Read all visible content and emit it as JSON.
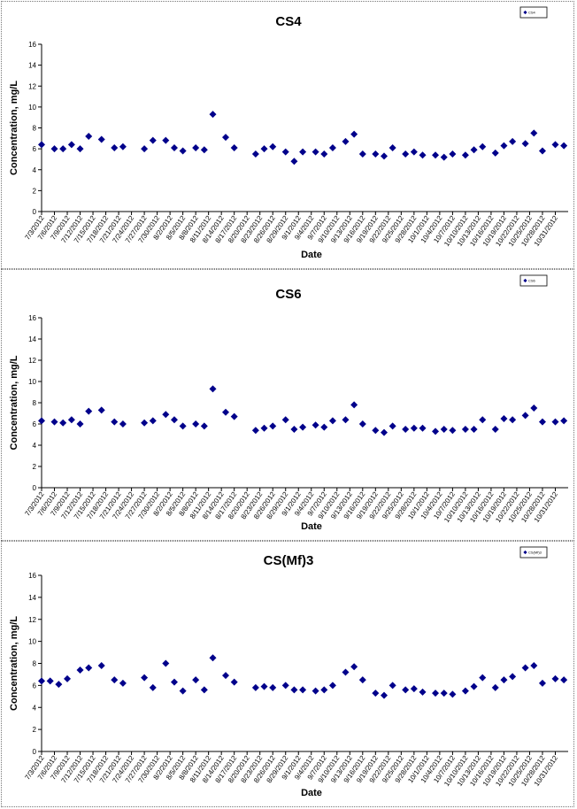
{
  "chart_data": [
    {
      "type": "scatter",
      "title": "CS4",
      "xlabel": "Date",
      "ylabel": "Concentration, mg/L",
      "ylim": [
        0,
        16
      ],
      "yticks": [
        0,
        2,
        4,
        6,
        8,
        10,
        12,
        14,
        16
      ],
      "grid": false,
      "legend_position": "top-right",
      "marker_color": "#00008b",
      "x_tick_labels": [
        "7/3/2012",
        "7/6/2012",
        "7/9/2012",
        "7/12/2012",
        "7/15/2012",
        "7/18/2012",
        "7/21/2012",
        "7/24/2012",
        "7/27/2012",
        "7/30/2012",
        "8/2/2012",
        "8/5/2012",
        "8/8/2012",
        "8/11/2012",
        "8/14/2012",
        "8/17/2012",
        "8/20/2012",
        "8/23/2012",
        "8/26/2012",
        "8/29/2012",
        "9/1/2012",
        "9/4/2012",
        "9/7/2012",
        "9/10/2012",
        "9/13/2012",
        "9/16/2012",
        "9/19/2012",
        "9/22/2012",
        "9/25/2012",
        "9/28/2012",
        "10/1/2012",
        "10/4/2012",
        "10/7/2012",
        "10/10/2012",
        "10/13/2012",
        "10/16/2012",
        "10/19/2012",
        "10/22/2012",
        "10/25/2012",
        "10/28/2012",
        "10/31/2012"
      ],
      "series": [
        {
          "name": "CS4",
          "x": [
            "7/3/2012",
            "7/6/2012",
            "7/8/2012",
            "7/10/2012",
            "7/12/2012",
            "7/14/2012",
            "7/17/2012",
            "7/20/2012",
            "7/22/2012",
            "7/27/2012",
            "7/29/2012",
            "8/1/2012",
            "8/3/2012",
            "8/5/2012",
            "8/8/2012",
            "8/10/2012",
            "8/12/2012",
            "8/15/2012",
            "8/17/2012",
            "8/22/2012",
            "8/24/2012",
            "8/26/2012",
            "8/29/2012",
            "8/31/2012",
            "9/2/2012",
            "9/5/2012",
            "9/7/2012",
            "9/9/2012",
            "9/12/2012",
            "9/14/2012",
            "9/16/2012",
            "9/19/2012",
            "9/21/2012",
            "9/23/2012",
            "9/26/2012",
            "9/28/2012",
            "9/30/2012",
            "10/3/2012",
            "10/5/2012",
            "10/7/2012",
            "10/10/2012",
            "10/12/2012",
            "10/14/2012",
            "10/17/2012",
            "10/19/2012",
            "10/21/2012",
            "10/24/2012",
            "10/26/2012",
            "10/28/2012",
            "10/31/2012",
            "11/2/2012"
          ],
          "y": [
            6.4,
            6.0,
            6.0,
            6.4,
            6.0,
            7.2,
            6.9,
            6.1,
            6.2,
            6.0,
            6.8,
            6.8,
            6.1,
            5.8,
            6.1,
            5.9,
            9.3,
            7.1,
            6.1,
            5.5,
            6.0,
            6.2,
            5.7,
            4.8,
            5.7,
            5.7,
            5.5,
            6.1,
            6.7,
            7.4,
            5.5,
            5.5,
            5.3,
            6.1,
            5.5,
            5.7,
            5.4,
            5.4,
            5.2,
            5.5,
            5.4,
            5.9,
            6.2,
            5.6,
            6.3,
            6.7,
            6.5,
            7.5,
            5.8,
            6.4,
            6.3
          ]
        }
      ]
    },
    {
      "type": "scatter",
      "title": "CS6",
      "xlabel": "Date",
      "ylabel": "Concentration, mg/L",
      "ylim": [
        0,
        16
      ],
      "yticks": [
        0,
        2,
        4,
        6,
        8,
        10,
        12,
        14,
        16
      ],
      "grid": false,
      "legend_position": "top-right",
      "marker_color": "#00008b",
      "x_tick_labels": [
        "7/3/2012",
        "7/6/2012",
        "7/9/2012",
        "7/12/2012",
        "7/15/2012",
        "7/18/2012",
        "7/21/2012",
        "7/24/2012",
        "7/27/2012",
        "7/30/2012",
        "8/2/2012",
        "8/5/2012",
        "8/8/2012",
        "8/11/2012",
        "8/14/2012",
        "8/17/2012",
        "8/20/2012",
        "8/23/2012",
        "8/26/2012",
        "8/29/2012",
        "9/1/2012",
        "9/4/2012",
        "9/7/2012",
        "9/10/2012",
        "9/13/2012",
        "9/16/2012",
        "9/19/2012",
        "9/22/2012",
        "9/25/2012",
        "9/28/2012",
        "10/1/2012",
        "10/4/2012",
        "10/7/2012",
        "10/10/2012",
        "10/13/2012",
        "10/16/2012",
        "10/19/2012",
        "10/22/2012",
        "10/25/2012",
        "10/28/2012",
        "10/31/2012"
      ],
      "series": [
        {
          "name": "CS6",
          "x": [
            "7/3/2012",
            "7/6/2012",
            "7/8/2012",
            "7/10/2012",
            "7/12/2012",
            "7/14/2012",
            "7/17/2012",
            "7/20/2012",
            "7/22/2012",
            "7/27/2012",
            "7/29/2012",
            "8/1/2012",
            "8/3/2012",
            "8/5/2012",
            "8/8/2012",
            "8/10/2012",
            "8/12/2012",
            "8/15/2012",
            "8/17/2012",
            "8/22/2012",
            "8/24/2012",
            "8/26/2012",
            "8/29/2012",
            "8/31/2012",
            "9/2/2012",
            "9/5/2012",
            "9/7/2012",
            "9/9/2012",
            "9/12/2012",
            "9/14/2012",
            "9/16/2012",
            "9/19/2012",
            "9/21/2012",
            "9/23/2012",
            "9/26/2012",
            "9/28/2012",
            "9/30/2012",
            "10/3/2012",
            "10/5/2012",
            "10/7/2012",
            "10/10/2012",
            "10/12/2012",
            "10/14/2012",
            "10/17/2012",
            "10/19/2012",
            "10/21/2012",
            "10/24/2012",
            "10/26/2012",
            "10/28/2012",
            "10/31/2012",
            "11/2/2012"
          ],
          "y": [
            6.3,
            6.2,
            6.1,
            6.4,
            6.0,
            7.2,
            7.3,
            6.2,
            6.0,
            6.1,
            6.3,
            6.9,
            6.4,
            5.8,
            6.0,
            5.8,
            9.3,
            7.1,
            6.7,
            5.4,
            5.6,
            5.8,
            6.4,
            5.5,
            5.7,
            5.9,
            5.7,
            6.3,
            6.4,
            7.8,
            6.0,
            5.4,
            5.2,
            5.8,
            5.5,
            5.6,
            5.6,
            5.3,
            5.5,
            5.4,
            5.5,
            5.5,
            6.4,
            5.5,
            6.5,
            6.4,
            6.8,
            7.5,
            6.2,
            6.2,
            6.3
          ]
        }
      ]
    },
    {
      "type": "scatter",
      "title": "CS(Mf)3",
      "xlabel": "Date",
      "ylabel": "Concentration, mg/L",
      "ylim": [
        0,
        16
      ],
      "yticks": [
        0,
        2,
        4,
        6,
        8,
        10,
        12,
        14,
        16
      ],
      "grid": false,
      "legend_position": "top-right",
      "marker_color": "#00008b",
      "x_tick_labels": [
        "7/3/2012",
        "7/6/2012",
        "7/9/2012",
        "7/12/2012",
        "7/15/2012",
        "7/18/2012",
        "7/21/2012",
        "7/24/2012",
        "7/27/2012",
        "7/30/2012",
        "8/2/2012",
        "8/5/2012",
        "8/8/2012",
        "8/11/2012",
        "8/14/2012",
        "8/17/2012",
        "8/20/2012",
        "8/23/2012",
        "8/26/2012",
        "8/29/2012",
        "9/1/2012",
        "9/4/2012",
        "9/7/2012",
        "9/10/2012",
        "9/13/2012",
        "9/16/2012",
        "9/19/2012",
        "9/22/2012",
        "9/25/2012",
        "9/28/2012",
        "10/1/2012",
        "10/4/2012",
        "10/7/2012",
        "10/10/2012",
        "10/13/2012",
        "10/16/2012",
        "10/19/2012",
        "10/22/2012",
        "10/25/2012",
        "10/28/2012",
        "10/31/2012"
      ],
      "series": [
        {
          "name": "CS(Mf)3",
          "x": [
            "7/3/2012",
            "7/5/2012",
            "7/7/2012",
            "7/9/2012",
            "7/12/2012",
            "7/14/2012",
            "7/17/2012",
            "7/20/2012",
            "7/22/2012",
            "7/27/2012",
            "7/29/2012",
            "8/1/2012",
            "8/3/2012",
            "8/5/2012",
            "8/8/2012",
            "8/10/2012",
            "8/12/2012",
            "8/15/2012",
            "8/17/2012",
            "8/22/2012",
            "8/24/2012",
            "8/26/2012",
            "8/29/2012",
            "8/31/2012",
            "9/2/2012",
            "9/5/2012",
            "9/7/2012",
            "9/9/2012",
            "9/12/2012",
            "9/14/2012",
            "9/16/2012",
            "9/19/2012",
            "9/21/2012",
            "9/23/2012",
            "9/26/2012",
            "9/28/2012",
            "9/30/2012",
            "10/3/2012",
            "10/5/2012",
            "10/7/2012",
            "10/10/2012",
            "10/12/2012",
            "10/14/2012",
            "10/17/2012",
            "10/19/2012",
            "10/21/2012",
            "10/24/2012",
            "10/26/2012",
            "10/28/2012",
            "10/31/2012",
            "11/2/2012"
          ],
          "y": [
            6.4,
            6.4,
            6.1,
            6.6,
            7.4,
            7.6,
            7.8,
            6.5,
            6.2,
            6.7,
            5.8,
            8.0,
            6.3,
            5.5,
            6.5,
            5.6,
            8.5,
            6.9,
            6.3,
            5.8,
            5.9,
            5.8,
            6.0,
            5.6,
            5.6,
            5.5,
            5.6,
            6.0,
            7.2,
            7.7,
            6.5,
            5.3,
            5.1,
            6.0,
            5.6,
            5.7,
            5.4,
            5.3,
            5.3,
            5.2,
            5.5,
            5.9,
            6.7,
            5.8,
            6.5,
            6.8,
            7.6,
            7.8,
            6.2,
            6.6,
            6.5
          ]
        }
      ]
    }
  ]
}
